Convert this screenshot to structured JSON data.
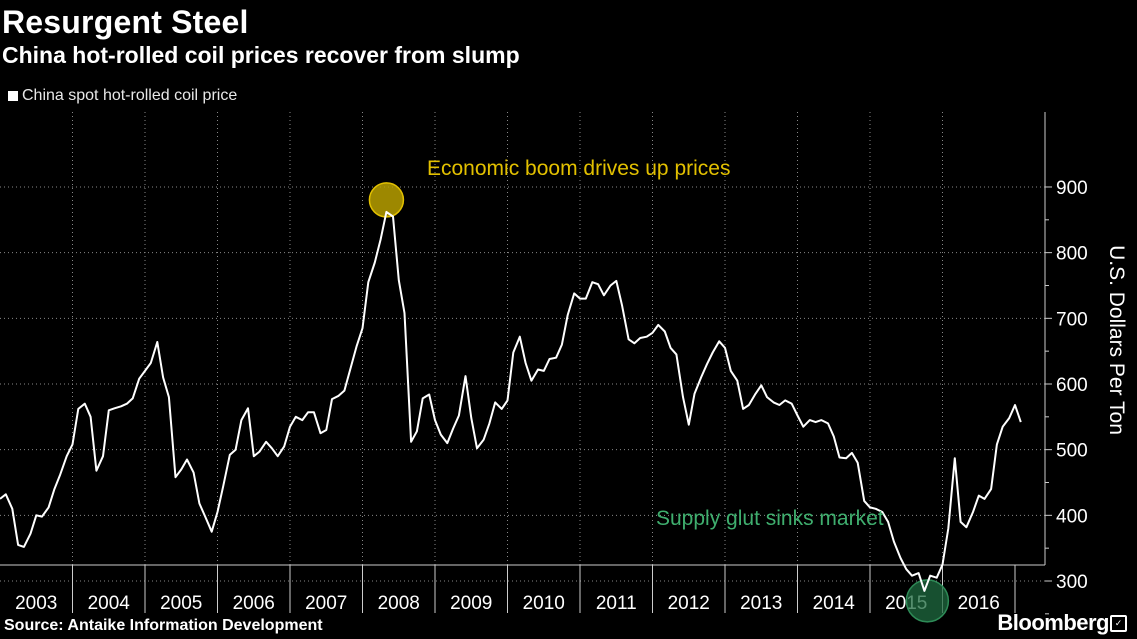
{
  "header": {
    "title": "Resurgent Steel",
    "subtitle": "China hot-rolled coil prices recover from slump"
  },
  "legend": {
    "label": "China spot hot-rolled coil price"
  },
  "footer": {
    "source": "Source: Antaike Information Development",
    "brand": "Bloomberg"
  },
  "colors": {
    "background": "#000000",
    "line": "#ffffff",
    "boom": "#e2c000",
    "glut": "#2e8b57"
  },
  "chart_data": {
    "type": "line",
    "title": "Resurgent Steel",
    "subtitle": "China hot-rolled coil prices recover from slump",
    "ylabel": "U.S. Dollars Per Ton",
    "ylim": [
      240,
      920
    ],
    "yticks": [
      300,
      400,
      500,
      600,
      700,
      800,
      900
    ],
    "xlim": [
      2003.0,
      2017.0
    ],
    "xticks": [
      "2003",
      "2004",
      "2005",
      "2006",
      "2007",
      "2008",
      "2009",
      "2010",
      "2011",
      "2012",
      "2013",
      "2014",
      "2015",
      "2016"
    ],
    "grid": true,
    "legend_position": "top-left",
    "series": [
      {
        "name": "China spot hot-rolled coil price",
        "color": "#ffffff",
        "points": [
          [
            2003.0,
            425
          ],
          [
            2003.08,
            432
          ],
          [
            2003.17,
            410
          ],
          [
            2003.25,
            355
          ],
          [
            2003.33,
            352
          ],
          [
            2003.42,
            372
          ],
          [
            2003.5,
            400
          ],
          [
            2003.58,
            398
          ],
          [
            2003.67,
            412
          ],
          [
            2003.75,
            440
          ],
          [
            2003.83,
            462
          ],
          [
            2003.92,
            490
          ],
          [
            2004.0,
            508
          ],
          [
            2004.08,
            562
          ],
          [
            2004.17,
            570
          ],
          [
            2004.25,
            550
          ],
          [
            2004.33,
            468
          ],
          [
            2004.42,
            490
          ],
          [
            2004.5,
            560
          ],
          [
            2004.58,
            563
          ],
          [
            2004.67,
            566
          ],
          [
            2004.75,
            570
          ],
          [
            2004.83,
            578
          ],
          [
            2004.92,
            608
          ],
          [
            2005.0,
            620
          ],
          [
            2005.08,
            632
          ],
          [
            2005.17,
            664
          ],
          [
            2005.25,
            610
          ],
          [
            2005.33,
            580
          ],
          [
            2005.42,
            458
          ],
          [
            2005.5,
            470
          ],
          [
            2005.58,
            485
          ],
          [
            2005.67,
            465
          ],
          [
            2005.75,
            418
          ],
          [
            2005.83,
            398
          ],
          [
            2005.92,
            375
          ],
          [
            2006.0,
            405
          ],
          [
            2006.08,
            445
          ],
          [
            2006.17,
            492
          ],
          [
            2006.25,
            500
          ],
          [
            2006.33,
            545
          ],
          [
            2006.42,
            563
          ],
          [
            2006.5,
            490
          ],
          [
            2006.58,
            497
          ],
          [
            2006.67,
            512
          ],
          [
            2006.75,
            502
          ],
          [
            2006.83,
            490
          ],
          [
            2006.92,
            505
          ],
          [
            2007.0,
            535
          ],
          [
            2007.08,
            550
          ],
          [
            2007.17,
            545
          ],
          [
            2007.25,
            557
          ],
          [
            2007.33,
            557
          ],
          [
            2007.42,
            525
          ],
          [
            2007.5,
            530
          ],
          [
            2007.58,
            577
          ],
          [
            2007.67,
            582
          ],
          [
            2007.75,
            590
          ],
          [
            2007.83,
            622
          ],
          [
            2007.92,
            658
          ],
          [
            2008.0,
            685
          ],
          [
            2008.08,
            755
          ],
          [
            2008.17,
            785
          ],
          [
            2008.25,
            820
          ],
          [
            2008.33,
            862
          ],
          [
            2008.42,
            855
          ],
          [
            2008.5,
            758
          ],
          [
            2008.58,
            708
          ],
          [
            2008.67,
            512
          ],
          [
            2008.75,
            528
          ],
          [
            2008.83,
            578
          ],
          [
            2008.92,
            584
          ],
          [
            2009.0,
            545
          ],
          [
            2009.08,
            523
          ],
          [
            2009.17,
            510
          ],
          [
            2009.25,
            532
          ],
          [
            2009.33,
            552
          ],
          [
            2009.42,
            612
          ],
          [
            2009.5,
            548
          ],
          [
            2009.58,
            502
          ],
          [
            2009.67,
            515
          ],
          [
            2009.75,
            540
          ],
          [
            2009.83,
            572
          ],
          [
            2009.92,
            562
          ],
          [
            2010.0,
            575
          ],
          [
            2010.08,
            648
          ],
          [
            2010.17,
            672
          ],
          [
            2010.25,
            632
          ],
          [
            2010.33,
            605
          ],
          [
            2010.42,
            622
          ],
          [
            2010.5,
            620
          ],
          [
            2010.58,
            638
          ],
          [
            2010.67,
            640
          ],
          [
            2010.75,
            660
          ],
          [
            2010.83,
            705
          ],
          [
            2010.92,
            738
          ],
          [
            2011.0,
            730
          ],
          [
            2011.08,
            730
          ],
          [
            2011.17,
            755
          ],
          [
            2011.25,
            752
          ],
          [
            2011.33,
            735
          ],
          [
            2011.42,
            750
          ],
          [
            2011.5,
            757
          ],
          [
            2011.58,
            720
          ],
          [
            2011.67,
            668
          ],
          [
            2011.75,
            662
          ],
          [
            2011.83,
            670
          ],
          [
            2011.92,
            672
          ],
          [
            2012.0,
            678
          ],
          [
            2012.08,
            690
          ],
          [
            2012.17,
            680
          ],
          [
            2012.25,
            655
          ],
          [
            2012.33,
            645
          ],
          [
            2012.42,
            580
          ],
          [
            2012.5,
            538
          ],
          [
            2012.58,
            585
          ],
          [
            2012.67,
            610
          ],
          [
            2012.75,
            630
          ],
          [
            2012.83,
            648
          ],
          [
            2012.92,
            665
          ],
          [
            2013.0,
            655
          ],
          [
            2013.08,
            620
          ],
          [
            2013.17,
            605
          ],
          [
            2013.25,
            562
          ],
          [
            2013.33,
            568
          ],
          [
            2013.42,
            585
          ],
          [
            2013.5,
            598
          ],
          [
            2013.58,
            580
          ],
          [
            2013.67,
            572
          ],
          [
            2013.75,
            568
          ],
          [
            2013.83,
            575
          ],
          [
            2013.92,
            570
          ],
          [
            2014.0,
            552
          ],
          [
            2014.08,
            535
          ],
          [
            2014.17,
            545
          ],
          [
            2014.25,
            542
          ],
          [
            2014.33,
            545
          ],
          [
            2014.42,
            540
          ],
          [
            2014.5,
            520
          ],
          [
            2014.58,
            488
          ],
          [
            2014.67,
            487
          ],
          [
            2014.75,
            495
          ],
          [
            2014.83,
            480
          ],
          [
            2014.92,
            422
          ],
          [
            2015.0,
            412
          ],
          [
            2015.08,
            410
          ],
          [
            2015.17,
            405
          ],
          [
            2015.25,
            390
          ],
          [
            2015.33,
            360
          ],
          [
            2015.42,
            335
          ],
          [
            2015.5,
            318
          ],
          [
            2015.58,
            308
          ],
          [
            2015.67,
            312
          ],
          [
            2015.75,
            285
          ],
          [
            2015.83,
            308
          ],
          [
            2015.92,
            305
          ],
          [
            2016.0,
            325
          ],
          [
            2016.08,
            380
          ],
          [
            2016.17,
            487
          ],
          [
            2016.25,
            390
          ],
          [
            2016.33,
            382
          ],
          [
            2016.42,
            405
          ],
          [
            2016.5,
            430
          ],
          [
            2016.58,
            425
          ],
          [
            2016.67,
            440
          ],
          [
            2016.75,
            508
          ],
          [
            2016.83,
            535
          ],
          [
            2016.92,
            548
          ],
          [
            2017.0,
            568
          ],
          [
            2017.08,
            542
          ]
        ]
      }
    ],
    "annotations": [
      {
        "text": "Economic boom drives up prices",
        "x": 2008.33,
        "y": 862,
        "color": "#e2c000"
      },
      {
        "text": "Supply glut sinks market",
        "x": 2015.75,
        "y": 285,
        "color": "#2e8b57"
      }
    ]
  }
}
